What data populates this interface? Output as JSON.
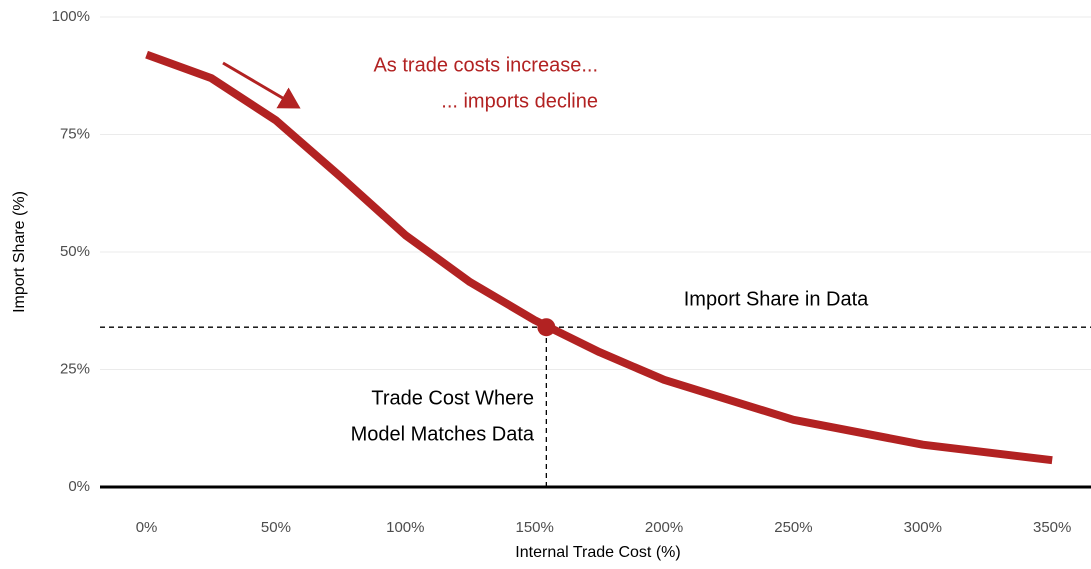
{
  "chart_data": {
    "type": "line",
    "x": [
      0,
      25,
      50,
      75,
      100,
      125,
      150,
      175,
      200,
      250,
      300,
      350
    ],
    "values": [
      92,
      87,
      78,
      66,
      53.6,
      43.6,
      35.5,
      28.7,
      22.8,
      14.3,
      9,
      5.7
    ],
    "color": "#b22222",
    "xlabel": "Internal Trade Cost (%)",
    "ylabel": "Import Share (%)",
    "xlim": [
      -18,
      365
    ],
    "ylim": [
      -5,
      100
    ],
    "xticks": [
      {
        "value": 0,
        "label": "0%"
      },
      {
        "value": 50,
        "label": "50%"
      },
      {
        "value": 100,
        "label": "100%"
      },
      {
        "value": 150,
        "label": "150%"
      },
      {
        "value": 200,
        "label": "200%"
      },
      {
        "value": 250,
        "label": "250%"
      },
      {
        "value": 300,
        "label": "300%"
      },
      {
        "value": 350,
        "label": "350%"
      }
    ],
    "yticks": [
      {
        "value": 0,
        "label": "0%"
      },
      {
        "value": 25,
        "label": "25%"
      },
      {
        "value": 50,
        "label": "50%"
      },
      {
        "value": 75,
        "label": "75%"
      },
      {
        "value": 100,
        "label": "100%"
      }
    ],
    "grid": true,
    "match": {
      "x": 154.5,
      "y": 34
    },
    "annotations": {
      "trend": [
        "As trade costs increase...",
        "... imports decline"
      ],
      "hline": "Import Share in Data",
      "vline": [
        "Trade Cost Where",
        "Model Matches Data"
      ]
    }
  }
}
